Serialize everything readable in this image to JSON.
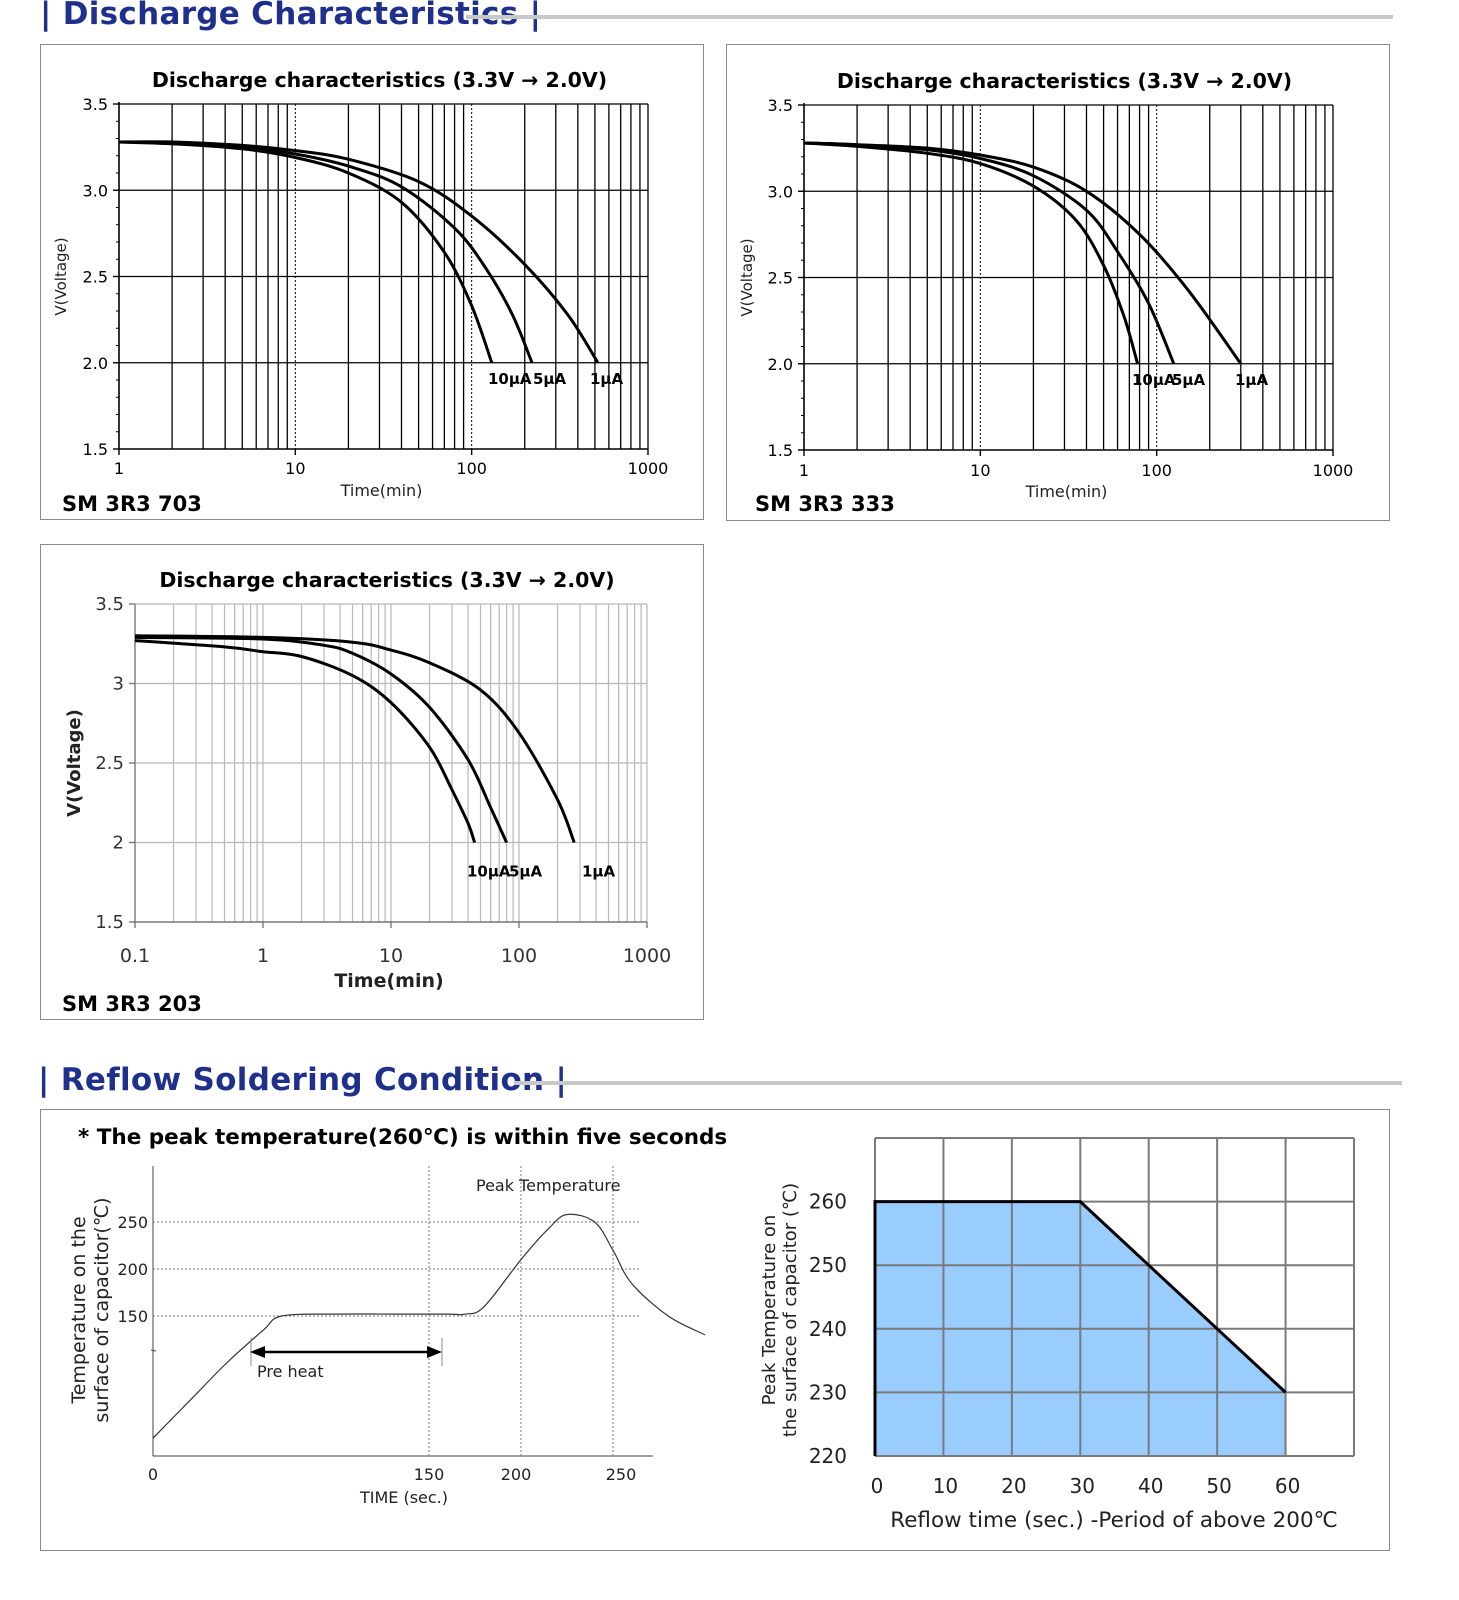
{
  "sections": {
    "discharge_title": "| Discharge Characteristics |",
    "reflow_title": "| Reflow Soldering Condition |"
  },
  "colors": {
    "heading": "#1e2f8c",
    "fill": "#99ccff",
    "rule": "#c8c8c8"
  },
  "chart_data": [
    {
      "type": "line",
      "model": "SM 3R3 703",
      "title": "Discharge characteristics (3.3V → 2.0V)",
      "xlabel": "Time(min)",
      "ylabel": "V(Voltage)",
      "xscale": "log",
      "xlim": [
        1,
        1000
      ],
      "ylim": [
        1.5,
        3.5
      ],
      "xticks": [
        "1",
        "10",
        "100",
        "1000"
      ],
      "yticks": [
        "1.5",
        "2.0",
        "2.5",
        "3.0",
        "3.5"
      ],
      "grid": true,
      "series": [
        {
          "name": "10μA",
          "x": [
            1,
            2,
            5,
            10,
            20,
            40,
            70,
            100,
            130
          ],
          "y": [
            3.28,
            3.27,
            3.24,
            3.19,
            3.1,
            2.93,
            2.64,
            2.33,
            2.0
          ]
        },
        {
          "name": "5μA",
          "x": [
            1,
            2,
            5,
            10,
            20,
            40,
            80,
            120,
            170,
            220
          ],
          "y": [
            3.28,
            3.27,
            3.25,
            3.21,
            3.14,
            3.02,
            2.78,
            2.55,
            2.28,
            2.0
          ]
        },
        {
          "name": "1μA",
          "x": [
            1,
            2,
            5,
            10,
            20,
            50,
            100,
            200,
            350,
            520
          ],
          "y": [
            3.28,
            3.28,
            3.26,
            3.23,
            3.18,
            3.05,
            2.85,
            2.57,
            2.28,
            2.0
          ]
        }
      ]
    },
    {
      "type": "line",
      "model": "SM 3R3 333",
      "title": "Discharge characteristics (3.3V → 2.0V)",
      "xlabel": "Time(min)",
      "ylabel": "V(Voltage)",
      "xscale": "log",
      "xlim": [
        1,
        1000
      ],
      "ylim": [
        1.5,
        3.5
      ],
      "xticks": [
        "1",
        "10",
        "100",
        "1000"
      ],
      "yticks": [
        "1.5",
        "2.0",
        "2.5",
        "3.0",
        "3.5"
      ],
      "grid": true,
      "series": [
        {
          "name": "10μA",
          "x": [
            1,
            2,
            5,
            10,
            20,
            35,
            50,
            65,
            78
          ],
          "y": [
            3.28,
            3.26,
            3.22,
            3.16,
            3.03,
            2.83,
            2.57,
            2.28,
            2.0
          ]
        },
        {
          "name": "5μA",
          "x": [
            1,
            2,
            5,
            10,
            20,
            40,
            60,
            90,
            125
          ],
          "y": [
            3.28,
            3.27,
            3.24,
            3.19,
            3.09,
            2.89,
            2.65,
            2.35,
            2.0
          ]
        },
        {
          "name": "1μA",
          "x": [
            1,
            2,
            5,
            10,
            20,
            40,
            80,
            150,
            300
          ],
          "y": [
            3.28,
            3.27,
            3.25,
            3.21,
            3.14,
            3.0,
            2.75,
            2.43,
            2.0
          ]
        }
      ]
    },
    {
      "type": "line",
      "model": "SM 3R3 203",
      "title": "Discharge characteristics (3.3V → 2.0V)",
      "xlabel": "Time(min)",
      "ylabel": "V(Voltage)",
      "xscale": "log",
      "xlim": [
        0.1,
        1000
      ],
      "ylim": [
        1.5,
        3.5
      ],
      "xticks": [
        "0.1",
        "1",
        "10",
        "100",
        "1000"
      ],
      "yticks": [
        "1.5",
        "2",
        "2.5",
        "3",
        "3.5"
      ],
      "grid": true,
      "series": [
        {
          "name": "10μA",
          "x": [
            0.1,
            0.5,
            1,
            2,
            5,
            10,
            20,
            30,
            40,
            45
          ],
          "y": [
            3.27,
            3.23,
            3.2,
            3.17,
            3.05,
            2.88,
            2.6,
            2.33,
            2.12,
            2.0
          ]
        },
        {
          "name": "5μA",
          "x": [
            0.1,
            1,
            3,
            5,
            10,
            20,
            40,
            60,
            80
          ],
          "y": [
            3.29,
            3.28,
            3.24,
            3.19,
            3.06,
            2.85,
            2.52,
            2.22,
            2.0
          ]
        },
        {
          "name": "1μA",
          "x": [
            0.1,
            1,
            5,
            10,
            20,
            50,
            100,
            200,
            270
          ],
          "y": [
            3.3,
            3.29,
            3.26,
            3.21,
            3.13,
            2.96,
            2.69,
            2.27,
            2.0
          ]
        }
      ]
    },
    {
      "type": "line",
      "note": "* The peak temperature(260℃)  is within five seconds",
      "xlabel": "TIME (sec.)",
      "ylabel_lines": [
        "Temperature on the",
        "surface of capacitor(℃)"
      ],
      "xticks": [
        "0",
        "150",
        "200",
        "250"
      ],
      "yticks": [
        "150",
        "200",
        "250"
      ],
      "annotations": {
        "peak": "Peak Temperature",
        "preheat": "Pre heat"
      },
      "series": [
        {
          "x": [
            0,
            20,
            40,
            60,
            70,
            100,
            130,
            160,
            170,
            180,
            200,
            215,
            225,
            240,
            250,
            260,
            280,
            300
          ],
          "y": [
            20,
            60,
            100,
            135,
            150,
            152,
            152,
            152,
            152,
            160,
            210,
            243,
            258,
            250,
            220,
            185,
            150,
            130
          ]
        }
      ]
    },
    {
      "type": "area",
      "xlabel": "Reflow time (sec.) -Period of above 200℃",
      "ylabel_lines": [
        "Peak Temperature on",
        "the surface of capacitor (℃)"
      ],
      "xticks": [
        "0",
        "10",
        "20",
        "30",
        "40",
        "50",
        "60"
      ],
      "yticks": [
        "220",
        "230",
        "240",
        "250",
        "260"
      ],
      "xlim": [
        0,
        70
      ],
      "ylim": [
        220,
        270
      ],
      "grid": true,
      "series": [
        {
          "x": [
            0,
            30,
            40,
            50,
            60
          ],
          "y": [
            260,
            260,
            250,
            240,
            230
          ]
        }
      ]
    }
  ]
}
